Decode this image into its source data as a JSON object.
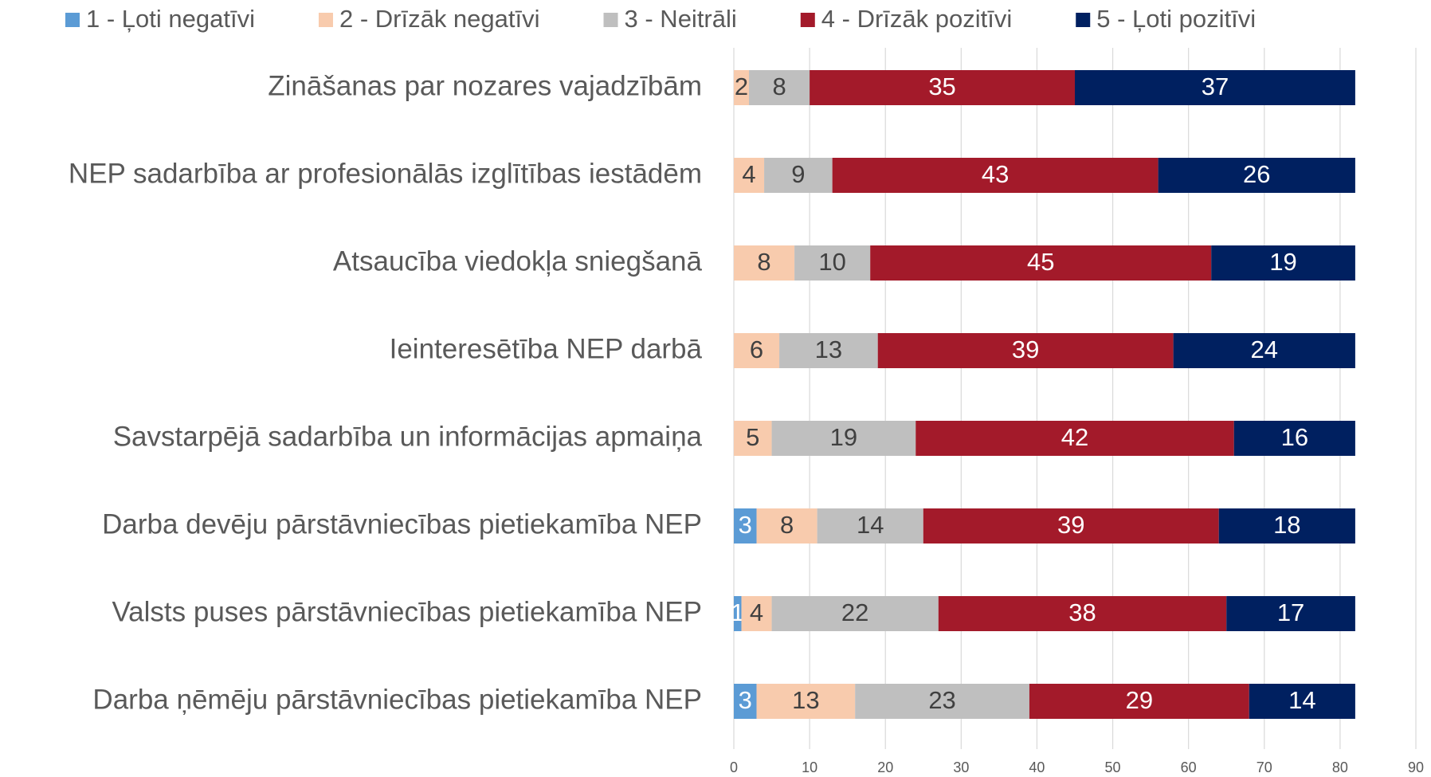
{
  "chart_data": {
    "type": "stacked-bar-horizontal",
    "categories": [
      "Zināšanas par nozares vajadzībām",
      "NEP sadarbība ar profesionālās izglītības iestādēm",
      "Atsaucība viedokļa sniegšanā",
      "Ieinteresētība NEP darbā",
      "Savstarpējā sadarbība un informācijas apmaiņa",
      "Darba devēju pārstāvniecības pietiekamība NEP",
      "Valsts puses pārstāvniecības pietiekamība NEP",
      "Darba ņēmēju pārstāvniecības pietiekamība NEP"
    ],
    "series": [
      {
        "name": "1 - Ļoti negatīvi",
        "color": "#5b9bd5",
        "values": [
          null,
          null,
          null,
          null,
          null,
          3,
          1,
          3
        ]
      },
      {
        "name": "2 - Drīzāk negatīvi",
        "color": "#f8cbad",
        "values": [
          2,
          4,
          8,
          6,
          5,
          8,
          4,
          13
        ]
      },
      {
        "name": "3 - Neitrāli",
        "color": "#bfbfbf",
        "values": [
          8,
          9,
          10,
          13,
          19,
          14,
          22,
          23
        ]
      },
      {
        "name": "4 - Drīzāk pozitīvi",
        "color": "#a31a2a",
        "values": [
          35,
          43,
          45,
          39,
          42,
          39,
          38,
          29
        ]
      },
      {
        "name": "5 - Ļoti pozitīvi",
        "color": "#002060",
        "values": [
          37,
          26,
          19,
          24,
          16,
          18,
          17,
          14
        ]
      }
    ],
    "xlim": [
      0,
      90
    ],
    "xticks": [
      0,
      10,
      20,
      30,
      40,
      50,
      60,
      70,
      80,
      90
    ],
    "grid": true,
    "legend": "top"
  }
}
